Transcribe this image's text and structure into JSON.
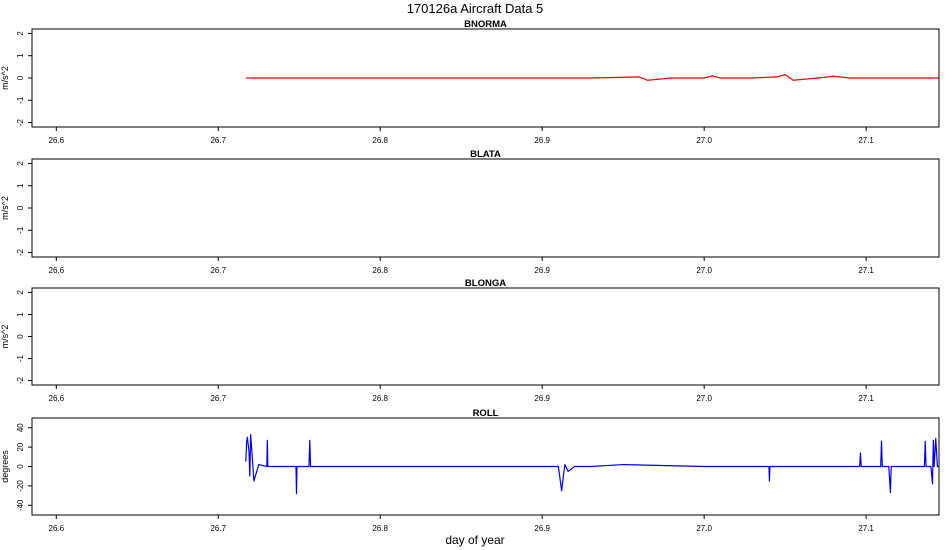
{
  "figure": {
    "title": "170126a   Aircraft Data 5",
    "xlabel": "day of year"
  },
  "chart_data": [
    {
      "type": "line",
      "title": "BNORMA",
      "ylabel": "m/s^2",
      "xlim": [
        26.585,
        27.145
      ],
      "ylim": [
        -2.2,
        2.2
      ],
      "xticks": [
        "26.6",
        "26.7",
        "26.8",
        "26.9",
        "27.0",
        "27.1"
      ],
      "yticks": [
        "-2",
        "-1",
        "0",
        "1",
        "2"
      ],
      "color": "#ff0000",
      "series": [
        {
          "x": [
            26.717,
            26.75,
            26.8,
            26.85,
            26.9,
            26.93,
            26.96,
            26.965,
            26.98,
            27.0,
            27.005,
            27.01,
            27.03,
            27.045,
            27.05,
            27.055,
            27.07,
            27.08,
            27.09,
            27.12,
            27.145
          ],
          "y": [
            0.0,
            0.0,
            0.0,
            0.0,
            0.0,
            0.0,
            0.05,
            -0.1,
            0.0,
            0.0,
            0.1,
            0.0,
            0.0,
            0.05,
            0.15,
            -0.1,
            0.0,
            0.08,
            0.0,
            0.0,
            0.0
          ]
        }
      ]
    },
    {
      "type": "line",
      "title": "BLATA",
      "ylabel": "m/s^2",
      "xlim": [
        26.585,
        27.145
      ],
      "ylim": [
        -2.2,
        2.2
      ],
      "xticks": [
        "26.6",
        "26.7",
        "26.8",
        "26.9",
        "27.0",
        "27.1"
      ],
      "yticks": [
        "-2",
        "-1",
        "0",
        "1",
        "2"
      ],
      "color": "#000000",
      "series": []
    },
    {
      "type": "line",
      "title": "BLONGA",
      "ylabel": "m/s^2",
      "xlim": [
        26.585,
        27.145
      ],
      "ylim": [
        -2.2,
        2.2
      ],
      "xticks": [
        "26.6",
        "26.7",
        "26.8",
        "26.9",
        "27.0",
        "27.1"
      ],
      "yticks": [
        "-2",
        "-1",
        "0",
        "1",
        "2"
      ],
      "color": "#000000",
      "series": []
    },
    {
      "type": "line",
      "title": "ROLL",
      "ylabel": "degrees",
      "xlim": [
        26.585,
        27.145
      ],
      "ylim": [
        -50,
        50
      ],
      "xticks": [
        "26.6",
        "26.7",
        "26.8",
        "26.9",
        "27.0",
        "27.1"
      ],
      "yticks": [
        "-40",
        "-20",
        "0",
        "20",
        "40"
      ],
      "color": "#0000ff",
      "series": [
        {
          "x": [
            26.717,
            26.7175,
            26.718,
            26.719,
            26.7195,
            26.72,
            26.721,
            26.722,
            26.725,
            26.73,
            26.7303,
            26.7306,
            26.735,
            26.745,
            26.748,
            26.7483,
            26.7486,
            26.75,
            26.755,
            26.756,
            26.7565,
            26.757,
            26.76,
            26.8,
            26.85,
            26.9,
            26.91,
            26.912,
            26.914,
            26.916,
            26.92,
            26.93,
            26.95,
            27.0,
            27.03,
            27.04,
            27.0403,
            27.0406,
            27.05,
            27.095,
            27.096,
            27.0965,
            27.097,
            27.1,
            27.108,
            27.109,
            27.1095,
            27.11,
            27.114,
            27.115,
            27.1155,
            27.116,
            27.125,
            27.135,
            27.136,
            27.1365,
            27.137,
            27.14,
            27.141,
            27.1415,
            27.142,
            27.143,
            27.144,
            27.145
          ],
          "y": [
            5,
            25,
            30,
            15,
            -10,
            33,
            10,
            -15,
            2,
            0,
            27,
            0,
            0,
            0,
            0,
            -28,
            0,
            0,
            0,
            0,
            27,
            0,
            0,
            0,
            0,
            0,
            0,
            -25,
            2,
            -5,
            0,
            0,
            2,
            0,
            0,
            0,
            -15,
            0,
            0,
            0,
            0,
            14,
            0,
            0,
            0,
            0,
            26,
            0,
            0,
            -27,
            0,
            0,
            0,
            0,
            0,
            26,
            0,
            0,
            -18,
            27,
            0,
            29,
            0,
            0
          ]
        }
      ]
    }
  ]
}
